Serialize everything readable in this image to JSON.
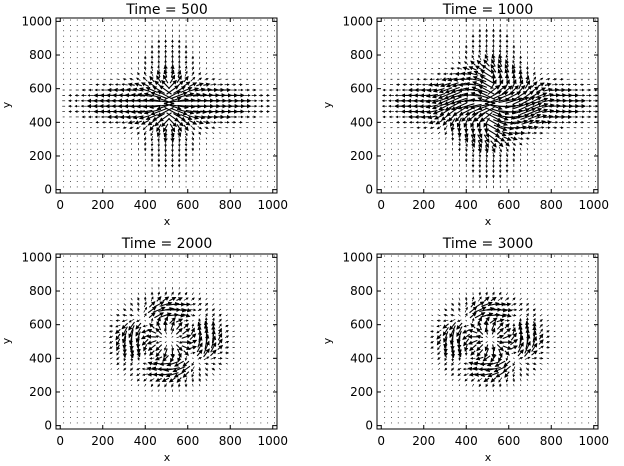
{
  "chart_data": [
    {
      "type": "quiver",
      "title": "Time = 500",
      "xlabel": "x",
      "ylabel": "y",
      "xlim": [
        -20,
        1020
      ],
      "ylim": [
        -20,
        1020
      ],
      "xticks": [
        "0",
        "200",
        "400",
        "600",
        "800",
        "1000"
      ],
      "yticks": [
        "0",
        "200",
        "400",
        "600",
        "800",
        "1000"
      ],
      "grid_n": 32,
      "field": {
        "center": [
          512,
          512
        ],
        "radius": 260,
        "kind": "horizontal-jet",
        "ring_count": 0
      }
    },
    {
      "type": "quiver",
      "title": "Time = 1000",
      "xlabel": "x",
      "ylabel": "y",
      "xlim": [
        -20,
        1020
      ],
      "ylim": [
        -20,
        1020
      ],
      "xticks": [
        "0",
        "200",
        "400",
        "600",
        "800",
        "1000"
      ],
      "yticks": [
        "0",
        "200",
        "400",
        "600",
        "800",
        "1000"
      ],
      "grid_n": 32,
      "field": {
        "center": [
          512,
          512
        ],
        "radius": 300,
        "kind": "horizontal-jet",
        "ring_count": 1
      }
    },
    {
      "type": "quiver",
      "title": "Time = 2000",
      "xlabel": "x",
      "ylabel": "y",
      "xlim": [
        -20,
        1020
      ],
      "ylim": [
        -20,
        1020
      ],
      "xticks": [
        "0",
        "200",
        "400",
        "600",
        "800",
        "1000"
      ],
      "yticks": [
        "0",
        "200",
        "400",
        "600",
        "800",
        "1000"
      ],
      "grid_n": 32,
      "field": {
        "center": [
          512,
          512
        ],
        "radius": 240,
        "kind": "ring",
        "ring_count": 2
      }
    },
    {
      "type": "quiver",
      "title": "Time = 3000",
      "xlabel": "x",
      "ylabel": "y",
      "xlim": [
        -20,
        1020
      ],
      "ylim": [
        -20,
        1020
      ],
      "xticks": [
        "0",
        "200",
        "400",
        "600",
        "800",
        "1000"
      ],
      "yticks": [
        "0",
        "200",
        "400",
        "600",
        "800",
        "1000"
      ],
      "grid_n": 32,
      "field": {
        "center": [
          512,
          512
        ],
        "radius": 230,
        "kind": "ring",
        "ring_count": 2
      }
    }
  ]
}
